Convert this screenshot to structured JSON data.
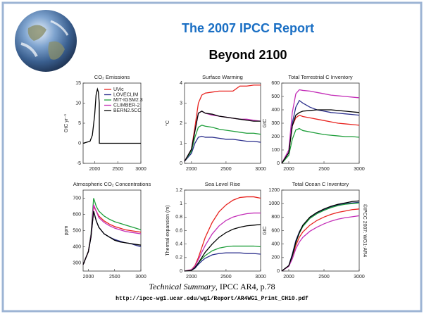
{
  "slide": {
    "title": "The 2007 IPCC Report",
    "subtitle": "Beyond 2100",
    "caption_italic": "Technical Summary",
    "caption_rest": ", IPCC AR4, p.78",
    "url": "http://ipcc-wg1.ucar.edu/wg1/Report/AR4WG1_Print_CH10.pdf"
  },
  "chart_data": [
    {
      "type": "line",
      "title": "CO₂ Emissions",
      "y_label": "GtC yr⁻¹",
      "color": "#000000",
      "x": [
        1750,
        1900,
        1950,
        2000,
        2030,
        2060,
        2080,
        2100,
        2101,
        3000
      ],
      "values": [
        0,
        0.5,
        2,
        7,
        12,
        13.5,
        12.8,
        10,
        0,
        0
      ],
      "xlim": [
        1750,
        3000
      ],
      "xticks": [
        2000,
        2500,
        3000
      ],
      "ylim": [
        -5,
        15
      ],
      "yticks": [
        -5,
        0,
        5,
        10,
        15
      ],
      "legend": [
        {
          "name": "UVic",
          "color": "#e8231f"
        },
        {
          "name": "LOVECLIM",
          "color": "#2b2f8c"
        },
        {
          "name": "MIT-IGSM2.3",
          "color": "#1e9e3a"
        },
        {
          "name": "CLIMBER-2",
          "color": "#c42fb8"
        },
        {
          "name": "BERN2.5CC",
          "color": "#000000"
        }
      ]
    },
    {
      "type": "line",
      "title": "Surface Warming",
      "y_label": "°C",
      "x": [
        1900,
        2000,
        2050,
        2100,
        2150,
        2200,
        2300,
        2400,
        2500,
        2600,
        2700,
        2800,
        2900,
        3000
      ],
      "series": [
        {
          "name": "UVic",
          "color": "#e8231f",
          "values": [
            0.1,
            0.7,
            1.8,
            3.0,
            3.4,
            3.5,
            3.55,
            3.6,
            3.6,
            3.6,
            3.85,
            3.85,
            3.9,
            3.9
          ]
        },
        {
          "name": "LOVECLIM",
          "color": "#2b2f8c",
          "values": [
            0.1,
            0.5,
            1.0,
            1.3,
            1.35,
            1.3,
            1.3,
            1.25,
            1.2,
            1.2,
            1.15,
            1.1,
            1.1,
            1.05
          ]
        },
        {
          "name": "MIT-IGSM2.3",
          "color": "#1e9e3a",
          "values": [
            0.1,
            0.6,
            1.3,
            1.8,
            1.9,
            1.85,
            1.8,
            1.7,
            1.65,
            1.6,
            1.55,
            1.5,
            1.5,
            1.45
          ]
        },
        {
          "name": "CLIMBER-2",
          "color": "#c42fb8",
          "values": [
            0.1,
            0.7,
            1.6,
            2.5,
            2.6,
            2.5,
            2.4,
            2.35,
            2.3,
            2.25,
            2.2,
            2.2,
            2.15,
            2.1
          ]
        },
        {
          "name": "BERN2.5CC",
          "color": "#000000",
          "values": [
            0.1,
            0.7,
            1.6,
            2.5,
            2.6,
            2.5,
            2.45,
            2.35,
            2.3,
            2.25,
            2.2,
            2.15,
            2.1,
            2.1
          ]
        }
      ],
      "xlim": [
        1900,
        3000
      ],
      "xticks": [
        2000,
        2500,
        3000
      ],
      "ylim": [
        0,
        4
      ],
      "yticks": [
        0,
        1,
        2,
        3,
        4
      ]
    },
    {
      "type": "line",
      "title": "Total Terrestrial C Inventory",
      "y_label": "GtC",
      "x": [
        1900,
        2000,
        2050,
        2100,
        2150,
        2200,
        2300,
        2400,
        2500,
        2600,
        2700,
        2800,
        2900,
        3000
      ],
      "series": [
        {
          "name": "UVic",
          "color": "#e8231f",
          "values": [
            0,
            80,
            280,
            340,
            360,
            350,
            340,
            330,
            320,
            310,
            300,
            295,
            290,
            285
          ]
        },
        {
          "name": "LOVECLIM",
          "color": "#2b2f8c",
          "values": [
            0,
            80,
            300,
            420,
            470,
            450,
            420,
            400,
            390,
            380,
            375,
            370,
            365,
            360
          ]
        },
        {
          "name": "MIT-IGSM2.3",
          "color": "#1e9e3a",
          "values": [
            0,
            60,
            180,
            250,
            260,
            245,
            235,
            225,
            215,
            210,
            205,
            200,
            200,
            195
          ]
        },
        {
          "name": "CLIMBER-2",
          "color": "#c42fb8",
          "values": [
            0,
            100,
            380,
            520,
            550,
            545,
            540,
            530,
            520,
            510,
            505,
            500,
            495,
            490
          ]
        },
        {
          "name": "BERN2.5CC",
          "color": "#000000",
          "values": [
            0,
            80,
            280,
            360,
            380,
            390,
            395,
            400,
            400,
            400,
            395,
            390,
            385,
            380
          ]
        }
      ],
      "xlim": [
        1900,
        3000
      ],
      "xticks": [
        2000,
        2500,
        3000
      ],
      "ylim": [
        0,
        600
      ],
      "yticks": [
        0,
        100,
        200,
        300,
        400,
        500,
        600
      ]
    },
    {
      "type": "line",
      "title": "Atmospheric CO₂ Concentrations",
      "y_label": "ppm",
      "x": [
        1900,
        2000,
        2050,
        2100,
        2150,
        2200,
        2300,
        2400,
        2500,
        2600,
        2700,
        2800,
        2900,
        3000
      ],
      "series": [
        {
          "name": "UVic",
          "color": "#e8231f",
          "values": [
            290,
            370,
            470,
            650,
            620,
            590,
            560,
            540,
            525,
            515,
            505,
            500,
            495,
            490
          ]
        },
        {
          "name": "LOVECLIM",
          "color": "#2b2f8c",
          "values": [
            290,
            370,
            460,
            620,
            560,
            520,
            480,
            460,
            445,
            435,
            425,
            420,
            410,
            400
          ]
        },
        {
          "name": "MIT-IGSM2.3",
          "color": "#1e9e3a",
          "values": [
            290,
            370,
            480,
            700,
            650,
            620,
            590,
            570,
            555,
            545,
            535,
            525,
            515,
            505
          ]
        },
        {
          "name": "CLIMBER-2",
          "color": "#c42fb8",
          "values": [
            290,
            370,
            470,
            660,
            620,
            580,
            550,
            530,
            515,
            505,
            495,
            490,
            485,
            480
          ]
        },
        {
          "name": "BERN2.5CC",
          "color": "#000000",
          "values": [
            290,
            370,
            460,
            620,
            560,
            520,
            480,
            460,
            440,
            430,
            425,
            420,
            415,
            410
          ]
        }
      ],
      "xlim": [
        1900,
        3000
      ],
      "xticks": [
        2000,
        2500,
        3000
      ],
      "ylim": [
        250,
        750
      ],
      "yticks": [
        300,
        400,
        500,
        600,
        700
      ]
    },
    {
      "type": "line",
      "title": "Sea Level Rise",
      "y_label": "Thermal expansion (m)",
      "x": [
        1900,
        2000,
        2050,
        2100,
        2150,
        2200,
        2300,
        2400,
        2500,
        2600,
        2700,
        2800,
        2900,
        3000
      ],
      "series": [
        {
          "name": "UVic",
          "color": "#e8231f",
          "values": [
            0,
            0.02,
            0.08,
            0.2,
            0.35,
            0.5,
            0.72,
            0.88,
            0.98,
            1.05,
            1.09,
            1.1,
            1.1,
            1.08
          ]
        },
        {
          "name": "LOVECLIM",
          "color": "#2b2f8c",
          "values": [
            0,
            0.01,
            0.04,
            0.1,
            0.15,
            0.19,
            0.24,
            0.26,
            0.27,
            0.27,
            0.27,
            0.26,
            0.26,
            0.25
          ]
        },
        {
          "name": "MIT-IGSM2.3",
          "color": "#1e9e3a",
          "values": [
            0,
            0.01,
            0.05,
            0.12,
            0.18,
            0.23,
            0.3,
            0.34,
            0.36,
            0.37,
            0.37,
            0.37,
            0.37,
            0.36
          ]
        },
        {
          "name": "CLIMBER-2",
          "color": "#c42fb8",
          "values": [
            0,
            0.02,
            0.07,
            0.17,
            0.28,
            0.38,
            0.55,
            0.67,
            0.75,
            0.8,
            0.83,
            0.85,
            0.86,
            0.86
          ]
        },
        {
          "name": "BERN2.5CC",
          "color": "#000000",
          "values": [
            0,
            0.01,
            0.05,
            0.12,
            0.2,
            0.28,
            0.4,
            0.5,
            0.57,
            0.62,
            0.65,
            0.67,
            0.68,
            0.69
          ]
        }
      ],
      "xlim": [
        1900,
        3000
      ],
      "xticks": [
        2000,
        2500,
        3000
      ],
      "ylim": [
        0,
        1.2
      ],
      "yticks": [
        0,
        0.2,
        0.4,
        0.6,
        0.8,
        1,
        1.2
      ]
    },
    {
      "type": "line",
      "title": "Total Ocean C Inventory",
      "y_label": "GtC",
      "annotation": "©IPCC 2007: WG1-AR4",
      "x": [
        1900,
        2000,
        2050,
        2100,
        2150,
        2200,
        2300,
        2400,
        2500,
        2600,
        2700,
        2800,
        2900,
        3000
      ],
      "series": [
        {
          "name": "UVic",
          "color": "#e8231f",
          "values": [
            0,
            80,
            200,
            380,
            500,
            580,
            680,
            750,
            800,
            840,
            870,
            890,
            910,
            920
          ]
        },
        {
          "name": "LOVECLIM",
          "color": "#2b2f8c",
          "values": [
            0,
            80,
            250,
            450,
            580,
            680,
            790,
            860,
            910,
            950,
            980,
            1000,
            1010,
            1020
          ]
        },
        {
          "name": "MIT-IGSM2.3",
          "color": "#1e9e3a",
          "values": [
            0,
            80,
            220,
            420,
            560,
            660,
            780,
            850,
            900,
            940,
            970,
            990,
            1000,
            1010
          ]
        },
        {
          "name": "CLIMBER-2",
          "color": "#c42fb8",
          "values": [
            0,
            70,
            180,
            330,
            430,
            500,
            590,
            650,
            700,
            740,
            770,
            790,
            805,
            820
          ]
        },
        {
          "name": "BERN2.5CC",
          "color": "#000000",
          "values": [
            0,
            80,
            230,
            430,
            570,
            680,
            800,
            870,
            920,
            960,
            990,
            1010,
            1030,
            1040
          ]
        }
      ],
      "xlim": [
        1900,
        3000
      ],
      "xticks": [
        2000,
        2500,
        3000
      ],
      "ylim": [
        0,
        1200
      ],
      "yticks": [
        0,
        200,
        400,
        600,
        800,
        1000,
        1200
      ]
    }
  ]
}
